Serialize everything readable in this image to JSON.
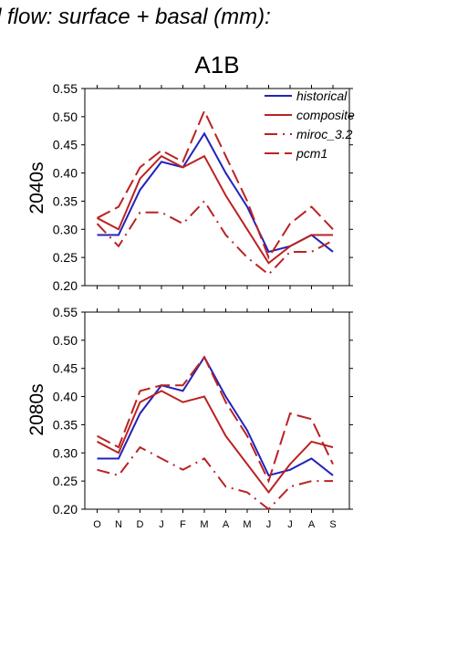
{
  "header": {
    "title_fragment": "d flow: surface + basal (mm):",
    "scenario": "A1B"
  },
  "chart_data": [
    {
      "type": "line",
      "row_label": "2040s",
      "categories": [
        "O",
        "N",
        "D",
        "J",
        "F",
        "M",
        "A",
        "M",
        "J",
        "J",
        "A",
        "S"
      ],
      "ylim": [
        0.2,
        0.55
      ],
      "yticks": [
        "0.20",
        "0.25",
        "0.30",
        "0.35",
        "0.40",
        "0.45",
        "0.50",
        "0.55"
      ],
      "legend": {
        "placement": "top-right"
      },
      "series": [
        {
          "name": "historical",
          "color": "#2222bb",
          "dash": "solid",
          "values": [
            0.29,
            0.29,
            0.37,
            0.42,
            0.41,
            0.47,
            0.4,
            0.34,
            0.26,
            0.27,
            0.29,
            0.26
          ]
        },
        {
          "name": "composite",
          "color": "#bb2222",
          "dash": "solid",
          "values": [
            0.32,
            0.3,
            0.39,
            0.43,
            0.41,
            0.43,
            0.36,
            0.3,
            0.24,
            0.27,
            0.29,
            0.29
          ]
        },
        {
          "name": "miroc_3.2",
          "color": "#bb2222",
          "dash": "dashdot",
          "values": [
            0.31,
            0.27,
            0.33,
            0.33,
            0.31,
            0.35,
            0.29,
            0.25,
            0.22,
            0.26,
            0.26,
            0.28
          ]
        },
        {
          "name": "pcm1",
          "color": "#bb2222",
          "dash": "dashed",
          "values": [
            0.32,
            0.34,
            0.41,
            0.44,
            0.42,
            0.51,
            0.43,
            0.35,
            0.25,
            0.31,
            0.34,
            0.3
          ]
        }
      ]
    },
    {
      "type": "line",
      "row_label": "2080s",
      "categories": [
        "O",
        "N",
        "D",
        "J",
        "F",
        "M",
        "A",
        "M",
        "J",
        "J",
        "A",
        "S"
      ],
      "ylim": [
        0.2,
        0.55
      ],
      "yticks": [
        "0.20",
        "0.25",
        "0.30",
        "0.35",
        "0.40",
        "0.45",
        "0.50",
        "0.55"
      ],
      "series": [
        {
          "name": "historical",
          "color": "#2222bb",
          "dash": "solid",
          "values": [
            0.29,
            0.29,
            0.37,
            0.42,
            0.41,
            0.47,
            0.4,
            0.34,
            0.26,
            0.27,
            0.29,
            0.26
          ]
        },
        {
          "name": "composite",
          "color": "#bb2222",
          "dash": "solid",
          "values": [
            0.32,
            0.3,
            0.39,
            0.41,
            0.39,
            0.4,
            0.33,
            0.28,
            0.23,
            0.28,
            0.32,
            0.31
          ]
        },
        {
          "name": "miroc_3.2",
          "color": "#bb2222",
          "dash": "dashdot",
          "values": [
            0.27,
            0.26,
            0.31,
            0.29,
            0.27,
            0.29,
            0.24,
            0.23,
            0.2,
            0.24,
            0.25,
            0.25
          ]
        },
        {
          "name": "pcm1",
          "color": "#bb2222",
          "dash": "dashed",
          "values": [
            0.33,
            0.31,
            0.41,
            0.42,
            0.42,
            0.47,
            0.39,
            0.33,
            0.25,
            0.37,
            0.36,
            0.28
          ]
        }
      ]
    }
  ]
}
